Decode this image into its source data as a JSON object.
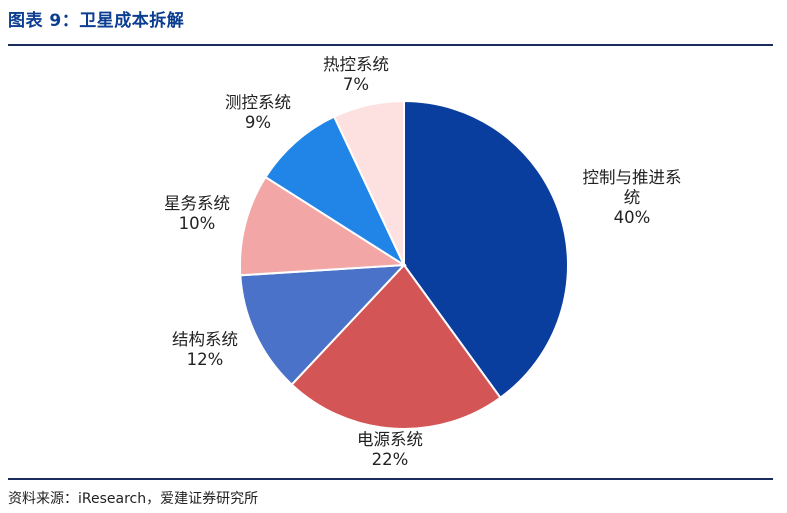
{
  "header": {
    "title": "图表 9：卫星成本拆解"
  },
  "footer": {
    "source": "资料来源：iResearch，爱建证券研究所"
  },
  "chart_data": {
    "type": "pie",
    "title": "图表 9：卫星成本拆解",
    "slices": [
      {
        "label": "控制与推进系统",
        "label_lines": [
          "控制与推进系",
          "统"
        ],
        "value": 40,
        "display": "40%",
        "color": "#0a3e9e"
      },
      {
        "label": "电源系统",
        "label_lines": [
          "电源系统"
        ],
        "value": 22,
        "display": "22%",
        "color": "#d45555"
      },
      {
        "label": "结构系统",
        "label_lines": [
          "结构系统"
        ],
        "value": 12,
        "display": "12%",
        "color": "#4a72c9"
      },
      {
        "label": "星务系统",
        "label_lines": [
          "星务系统"
        ],
        "value": 10,
        "display": "10%",
        "color": "#f2a6a6"
      },
      {
        "label": "测控系统",
        "label_lines": [
          "测控系统"
        ],
        "value": 9,
        "display": "9%",
        "color": "#2185e8"
      },
      {
        "label": "热控系统",
        "label_lines": [
          "热控系统"
        ],
        "value": 7,
        "display": "7%",
        "color": "#fde1e1"
      }
    ]
  }
}
